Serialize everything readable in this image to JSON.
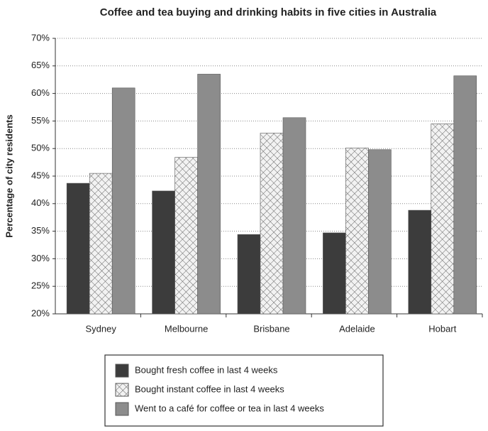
{
  "chart_data": {
    "type": "bar",
    "title": "Coffee and tea buying and drinking habits in five cities in Australia",
    "y_label": "Percentage of city residents",
    "categories": [
      "Sydney",
      "Melbourne",
      "Brisbane",
      "Adelaide",
      "Hobart"
    ],
    "series": [
      {
        "name": "Bought fresh coffee in last 4 weeks",
        "color": "#3c3c3c",
        "values": [
          43.7,
          42.3,
          34.4,
          34.7,
          38.8
        ]
      },
      {
        "name": "Bought instant coffee in last 4 weeks",
        "color": "#e4e4e4",
        "hatch": "cross",
        "values": [
          45.5,
          48.4,
          52.8,
          50.1,
          54.5
        ]
      },
      {
        "name": "Went to a café for coffee or tea in last 4 weeks",
        "color": "#8c8c8c",
        "values": [
          61,
          63.5,
          55.6,
          49.8,
          63.2
        ]
      }
    ],
    "ylim": [
      20,
      70
    ],
    "yticks": [
      {
        "value": 20,
        "label": "20%"
      },
      {
        "value": 25,
        "label": "25%"
      },
      {
        "value": 30,
        "label": "30%"
      },
      {
        "value": 35,
        "label": "35%"
      },
      {
        "value": 40,
        "label": "40%"
      },
      {
        "value": 45,
        "label": "45%"
      },
      {
        "value": 50,
        "label": "50%"
      },
      {
        "value": 55,
        "label": "55%"
      },
      {
        "value": 60,
        "label": "60%"
      },
      {
        "value": 65,
        "label": "65%"
      },
      {
        "value": 70,
        "label": "70%"
      }
    ],
    "grid": true,
    "legend": "bottom"
  }
}
